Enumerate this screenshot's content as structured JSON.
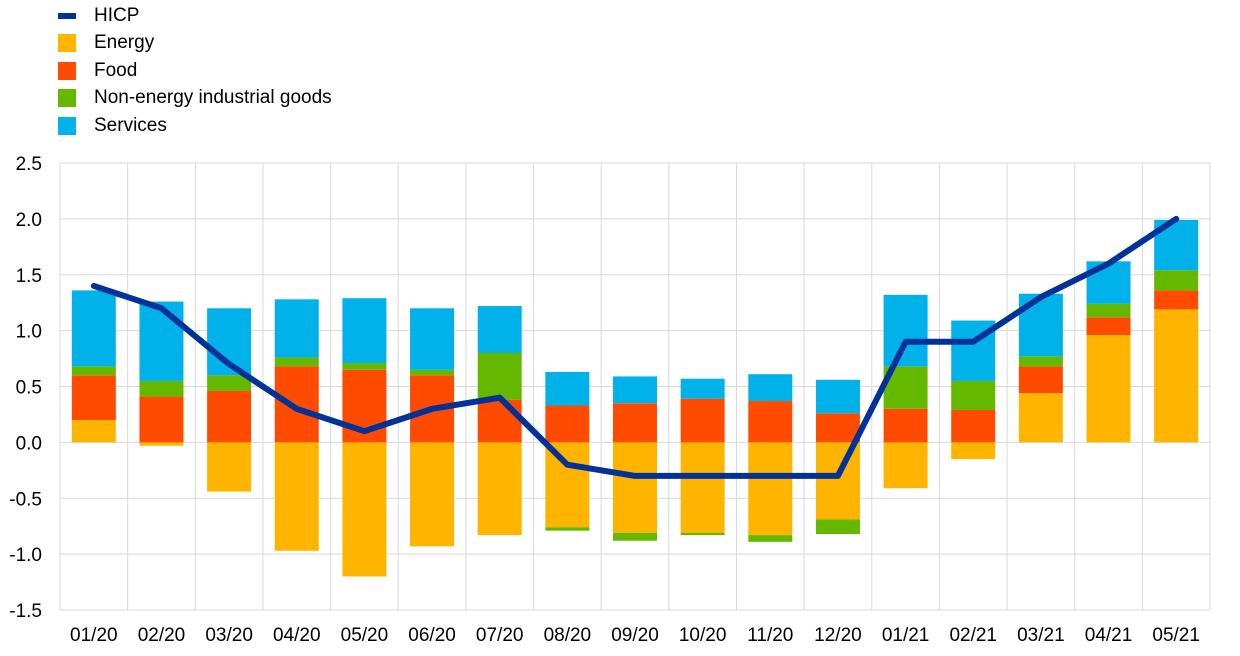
{
  "chart_data": {
    "type": "bar",
    "stacked": true,
    "categories": [
      "01/20",
      "02/20",
      "03/20",
      "04/20",
      "05/20",
      "06/20",
      "07/20",
      "08/20",
      "09/20",
      "10/20",
      "11/20",
      "12/20",
      "01/21",
      "02/21",
      "03/21",
      "04/21",
      "05/21"
    ],
    "ylim": [
      -1.5,
      2.5
    ],
    "yticks": [
      "2.5",
      "2.0",
      "1.5",
      "1.0",
      "0.5",
      "0.0",
      "-0.5",
      "-1.0",
      "-1.5"
    ],
    "grid": true,
    "legend_position": "top-left",
    "series": [
      {
        "name": "Energy",
        "type": "bar",
        "color": "#FFB400",
        "values": [
          0.2,
          -0.03,
          -0.44,
          -0.97,
          -1.2,
          -0.93,
          -0.83,
          -0.76,
          -0.81,
          -0.81,
          -0.83,
          -0.69,
          -0.41,
          -0.15,
          0.44,
          0.96,
          1.19
        ]
      },
      {
        "name": "Food",
        "type": "bar",
        "color": "#FF4B00",
        "values": [
          0.4,
          0.41,
          0.46,
          0.68,
          0.65,
          0.6,
          0.38,
          0.33,
          0.35,
          0.39,
          0.37,
          0.26,
          0.3,
          0.29,
          0.24,
          0.16,
          0.17
        ]
      },
      {
        "name": "Non-energy industrial goods",
        "type": "bar",
        "color": "#65B800",
        "values": [
          0.08,
          0.14,
          0.14,
          0.08,
          0.06,
          0.05,
          0.42,
          -0.03,
          -0.07,
          -0.02,
          -0.06,
          -0.13,
          0.38,
          0.26,
          0.09,
          0.12,
          0.18
        ]
      },
      {
        "name": "Services",
        "type": "bar",
        "color": "#00B1EA",
        "values": [
          0.68,
          0.71,
          0.6,
          0.52,
          0.58,
          0.55,
          0.42,
          0.3,
          0.24,
          0.18,
          0.24,
          0.3,
          0.64,
          0.54,
          0.56,
          0.38,
          0.45
        ]
      },
      {
        "name": "HICP",
        "type": "line",
        "color": "#003299",
        "values": [
          1.4,
          1.2,
          0.7,
          0.3,
          0.1,
          0.3,
          0.4,
          -0.2,
          -0.3,
          -0.3,
          -0.3,
          -0.3,
          0.9,
          0.9,
          1.3,
          1.6,
          2.0
        ]
      }
    ]
  },
  "legend": {
    "items": [
      {
        "label": "HICP",
        "color": "#003299",
        "kind": "line"
      },
      {
        "label": "Energy",
        "color": "#FFB400",
        "kind": "box"
      },
      {
        "label": "Food",
        "color": "#FF4B00",
        "kind": "box"
      },
      {
        "label": "Non-energy industrial goods",
        "color": "#65B800",
        "kind": "box"
      },
      {
        "label": "Services",
        "color": "#00B1EA",
        "kind": "box"
      }
    ]
  }
}
